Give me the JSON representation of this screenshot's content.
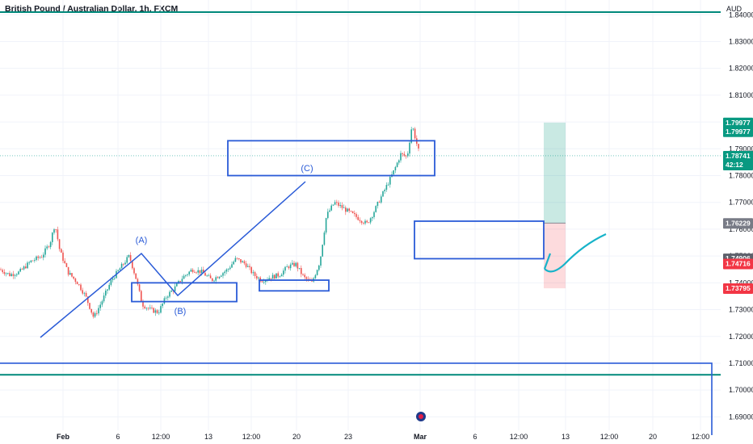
{
  "header": {
    "title": "British Pound / Australian Dollar, 1h, FXCM",
    "currency": "AUD"
  },
  "chart_data": {
    "type": "candlestick",
    "y_ticks": [
      "1.84000",
      "1.83000",
      "1.82000",
      "1.81000",
      "1.80000",
      "1.79000",
      "1.78000",
      "1.77000",
      "1.76000",
      "1.75000",
      "1.74000",
      "1.73000",
      "1.72000",
      "1.71000",
      "1.70000",
      "1.69000"
    ],
    "x_ticks": [
      "Feb",
      "6",
      "12:00",
      "13",
      "12:00",
      "20",
      "23",
      "Mar",
      "6",
      "12:00",
      "13",
      "12:00",
      "20",
      "12:00"
    ],
    "ylim": [
      1.685,
      1.8455
    ],
    "price_path": [
      [
        0,
        1.745
      ],
      [
        12,
        1.743
      ],
      [
        24,
        1.744
      ],
      [
        38,
        1.748
      ],
      [
        52,
        1.75
      ],
      [
        62,
        1.755
      ],
      [
        68,
        1.762
      ],
      [
        74,
        1.752
      ],
      [
        84,
        1.744
      ],
      [
        96,
        1.74
      ],
      [
        106,
        1.735
      ],
      [
        116,
        1.727
      ],
      [
        126,
        1.733
      ],
      [
        138,
        1.741
      ],
      [
        150,
        1.746
      ],
      [
        160,
        1.75
      ],
      [
        168,
        1.742
      ],
      [
        176,
        1.732
      ],
      [
        186,
        1.73
      ],
      [
        196,
        1.729
      ],
      [
        206,
        1.735
      ],
      [
        216,
        1.738
      ],
      [
        226,
        1.742
      ],
      [
        238,
        1.745
      ],
      [
        250,
        1.744
      ],
      [
        262,
        1.741
      ],
      [
        272,
        1.743
      ],
      [
        282,
        1.745
      ],
      [
        292,
        1.749
      ],
      [
        304,
        1.747
      ],
      [
        314,
        1.743
      ],
      [
        324,
        1.741
      ],
      [
        334,
        1.742
      ],
      [
        346,
        1.743
      ],
      [
        356,
        1.746
      ],
      [
        366,
        1.747
      ],
      [
        376,
        1.742
      ],
      [
        386,
        1.74
      ],
      [
        396,
        1.748
      ],
      [
        404,
        1.765
      ],
      [
        414,
        1.77
      ],
      [
        424,
        1.768
      ],
      [
        434,
        1.766
      ],
      [
        444,
        1.764
      ],
      [
        454,
        1.762
      ],
      [
        462,
        1.766
      ],
      [
        470,
        1.771
      ],
      [
        480,
        1.777
      ],
      [
        488,
        1.782
      ],
      [
        496,
        1.788
      ],
      [
        504,
        1.787
      ],
      [
        510,
        1.799
      ],
      [
        514,
        1.794
      ],
      [
        520,
        1.787
      ]
    ],
    "levels": {
      "resistance": 1.841,
      "support_line": 1.7057,
      "support_box_top": 1.71,
      "current_price": 1.7874
    },
    "wave_points": [
      {
        "label": "(A)",
        "date_index": 175,
        "price": 1.755
      },
      {
        "label": "(B)",
        "date_index": 222,
        "price": 1.739
      },
      {
        "label": "(C)",
        "date_index": 378,
        "price": 1.78
      }
    ],
    "zones": [
      {
        "name": "wave-b-zone",
        "price_top": 1.74,
        "price_bottom": 1.733
      },
      {
        "name": "consolidation-zone",
        "price_top": 1.741,
        "price_bottom": 1.737
      },
      {
        "name": "wave-c-zone",
        "price_top": 1.793,
        "price_bottom": 1.78
      },
      {
        "name": "entry-zone",
        "price_top": 1.763,
        "price_bottom": 1.749
      }
    ],
    "position": {
      "target": 1.79977,
      "entry": 1.76229,
      "stop": 1.73795
    }
  },
  "price_badges": [
    {
      "key": "target-badge",
      "lines": [
        "1.79977",
        "1.79977"
      ],
      "price": 1.7998,
      "color": "#089981"
    },
    {
      "key": "current-badge",
      "lines": [
        "1.78741",
        "42:12"
      ],
      "price": 1.7874,
      "color": "#089981"
    },
    {
      "key": "entry-badge",
      "lines": [
        "1.76229"
      ],
      "price": 1.7623,
      "color": "#787b86"
    },
    {
      "key": "level-badge",
      "lines": [
        "1.74906"
      ],
      "price": 1.7491,
      "color": "#5d606b"
    },
    {
      "key": "level-badge-2",
      "lines": [
        "1.74716"
      ],
      "price": 1.7472,
      "color": "#f23645"
    },
    {
      "key": "stop-badge",
      "lines": [
        "1.73795"
      ],
      "price": 1.738,
      "color": "#f23645"
    }
  ],
  "colors": {
    "up": "#26a69a",
    "down": "#ef5350",
    "drawing": "#2a5bd7",
    "level": "#00897b",
    "projection": "#17b3c9"
  }
}
